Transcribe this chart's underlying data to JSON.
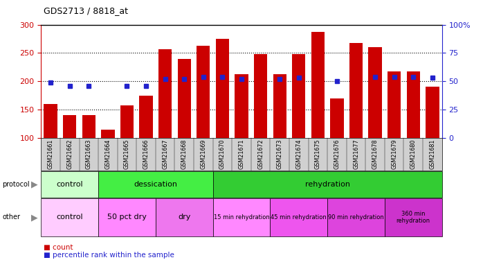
{
  "title": "GDS2713 / 8818_at",
  "samples": [
    "GSM21661",
    "GSM21662",
    "GSM21663",
    "GSM21664",
    "GSM21665",
    "GSM21666",
    "GSM21667",
    "GSM21668",
    "GSM21669",
    "GSM21670",
    "GSM21671",
    "GSM21672",
    "GSM21673",
    "GSM21674",
    "GSM21675",
    "GSM21676",
    "GSM21677",
    "GSM21678",
    "GSM21679",
    "GSM21680",
    "GSM21681"
  ],
  "counts": [
    160,
    140,
    140,
    115,
    157,
    175,
    257,
    240,
    263,
    275,
    213,
    248,
    213,
    248,
    287,
    170,
    268,
    260,
    218,
    218,
    191
  ],
  "percentiles": [
    49,
    46,
    46,
    null,
    46,
    46,
    52,
    52,
    54,
    54,
    52,
    null,
    52,
    53,
    null,
    50,
    null,
    54,
    54,
    54,
    53
  ],
  "ylim_left": [
    100,
    300
  ],
  "ylim_right": [
    0,
    100
  ],
  "yticks_left": [
    100,
    150,
    200,
    250,
    300
  ],
  "yticks_right": [
    0,
    25,
    50,
    75,
    100
  ],
  "bar_color": "#cc0000",
  "dot_color": "#2222cc",
  "grid_dotted_at": [
    150,
    200,
    250
  ],
  "protocol_row": [
    {
      "label": "control",
      "start": 0,
      "end": 3,
      "color": "#ccffcc"
    },
    {
      "label": "dessication",
      "start": 3,
      "end": 9,
      "color": "#44ee44"
    },
    {
      "label": "rehydration",
      "start": 9,
      "end": 21,
      "color": "#33cc33"
    }
  ],
  "other_row": [
    {
      "label": "control",
      "start": 0,
      "end": 3,
      "color": "#ffccff"
    },
    {
      "label": "50 pct dry",
      "start": 3,
      "end": 6,
      "color": "#ff88ff"
    },
    {
      "label": "dry",
      "start": 6,
      "end": 9,
      "color": "#ee77ee"
    },
    {
      "label": "15 min rehydration",
      "start": 9,
      "end": 12,
      "color": "#ff88ff"
    },
    {
      "label": "45 min rehydration",
      "start": 12,
      "end": 15,
      "color": "#ee55ee"
    },
    {
      "label": "90 min rehydration",
      "start": 15,
      "end": 18,
      "color": "#dd44dd"
    },
    {
      "label": "360 min\nrehydration",
      "start": 18,
      "end": 21,
      "color": "#cc33cc"
    }
  ],
  "xlabel_color": "#cc0000",
  "ylabel_right_color": "#2222cc",
  "sample_bg_color": "#d0d0d0",
  "fig_bg": "#ffffff"
}
